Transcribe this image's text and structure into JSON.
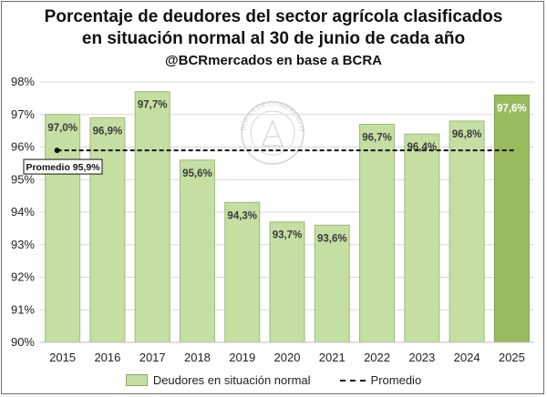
{
  "chart_data": {
    "type": "bar",
    "title": "Porcentaje de deudores del sector agrícola clasificados",
    "title_line2": "en situación normal al 30 de junio de cada año",
    "subtitle": "@BCRmercados en base a BCRA",
    "categories": [
      "2015",
      "2016",
      "2017",
      "2018",
      "2019",
      "2020",
      "2021",
      "2022",
      "2023",
      "2024",
      "2025"
    ],
    "series": [
      {
        "name": "Deudores en situación normal",
        "values": [
          97.0,
          96.9,
          97.7,
          95.6,
          94.3,
          93.7,
          93.6,
          96.7,
          96.4,
          96.8,
          97.6
        ],
        "data_labels": [
          "97,0%",
          "96,9%",
          "97,7%",
          "95,6%",
          "94,3%",
          "93,7%",
          "93,6%",
          "96,7%",
          "96,4%",
          "96,8%",
          "97,6%"
        ],
        "color": "#c5dfa3",
        "highlight_color": "#98bb5e",
        "highlight_index": 10
      }
    ],
    "average": {
      "name": "Promedio",
      "value": 95.9,
      "label": "Promedio 95,9%"
    },
    "ylim": [
      90,
      98
    ],
    "yticks": [
      90,
      91,
      92,
      93,
      94,
      95,
      96,
      97,
      98
    ],
    "ytick_labels": [
      "90%",
      "91%",
      "92%",
      "93%",
      "94%",
      "95%",
      "96%",
      "97%",
      "98%"
    ],
    "grid": true,
    "legend_position": "bottom",
    "watermark": "BOLSA DE COMERCIO DE ROSARIO"
  }
}
